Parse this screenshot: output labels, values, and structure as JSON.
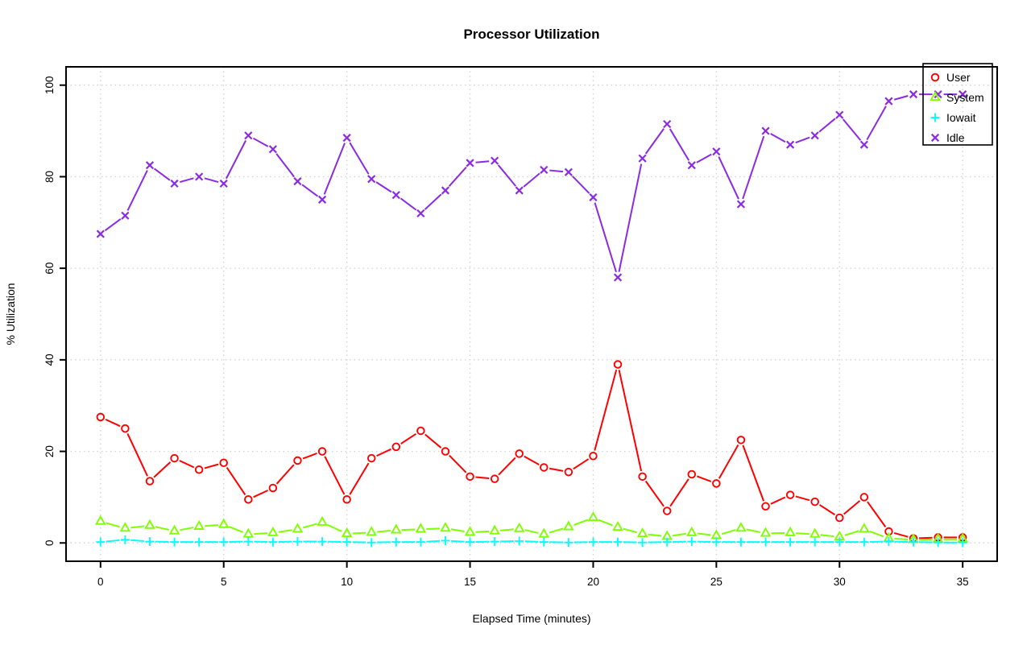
{
  "chart_data": {
    "type": "line",
    "title": "Processor Utilization",
    "xlabel": "Elapsed Time (minutes)",
    "ylabel": "% Utilization",
    "xlim": [
      0,
      35
    ],
    "ylim": [
      0,
      100
    ],
    "x_ticks": [
      0,
      5,
      10,
      15,
      20,
      25,
      30,
      35
    ],
    "y_ticks": [
      0,
      20,
      40,
      60,
      80,
      100
    ],
    "grid": "dotted lightgray, on",
    "grid_color": "#d4d4d4",
    "box_color": "#000000",
    "legend_position": "top-right",
    "x": [
      0,
      1,
      2,
      3,
      4,
      5,
      6,
      7,
      8,
      9,
      10,
      11,
      12,
      13,
      14,
      15,
      16,
      17,
      18,
      19,
      20,
      21,
      22,
      23,
      24,
      25,
      26,
      27,
      28,
      29,
      30,
      31,
      32,
      33,
      34,
      35
    ],
    "series": [
      {
        "name": "User",
        "color": "#ff0000",
        "marker": "circle",
        "values": [
          27.5,
          25,
          13.5,
          18.5,
          16,
          17.5,
          9.5,
          12,
          18,
          20,
          9.5,
          18.5,
          21,
          24.5,
          20,
          14.5,
          14,
          19.5,
          16.5,
          15.5,
          19,
          39,
          14.5,
          7,
          15,
          13,
          22.5,
          8,
          10.5,
          9,
          5.5,
          10,
          2.5,
          1,
          1.2,
          1.2
        ]
      },
      {
        "name": "System",
        "color": "#7fff00",
        "marker": "triangle",
        "values": [
          4.7,
          3.2,
          3.8,
          2.6,
          3.6,
          4,
          1.9,
          2.2,
          3,
          4.5,
          2,
          2.3,
          2.8,
          3,
          3.2,
          2.3,
          2.6,
          3.1,
          1.9,
          3.5,
          5.5,
          3.4,
          2,
          1.4,
          2.2,
          1.6,
          3.2,
          2.1,
          2.2,
          1.9,
          1.3,
          3,
          1,
          0.7,
          0.8,
          0.8
        ]
      },
      {
        "name": "Iowait",
        "color": "#00ffff",
        "marker": "plus",
        "values": [
          0.2,
          0.7,
          0.3,
          0.2,
          0.2,
          0.2,
          0.3,
          0.2,
          0.3,
          0.3,
          0.2,
          0.1,
          0.2,
          0.2,
          0.5,
          0.2,
          0.3,
          0.4,
          0.2,
          0.1,
          0.2,
          0.2,
          0.1,
          0.2,
          0.3,
          0.2,
          0.2,
          0.2,
          0.2,
          0.2,
          0.2,
          0.2,
          0.3,
          0.2,
          0.1,
          0.1
        ]
      },
      {
        "name": "Idle",
        "color": "#8a2be2",
        "marker": "x",
        "values": [
          67.5,
          71.5,
          82.5,
          78.5,
          80,
          78.5,
          89,
          86,
          79,
          75,
          88.5,
          79.5,
          76,
          72,
          77,
          83,
          83.5,
          77,
          81.5,
          81,
          75.5,
          58,
          84,
          91.5,
          82.5,
          85.5,
          74,
          90,
          87,
          89,
          93.5,
          87,
          96.5,
          98,
          98,
          98
        ]
      }
    ],
    "legend_items": [
      "User",
      "System",
      "Iowait",
      "Idle"
    ]
  }
}
